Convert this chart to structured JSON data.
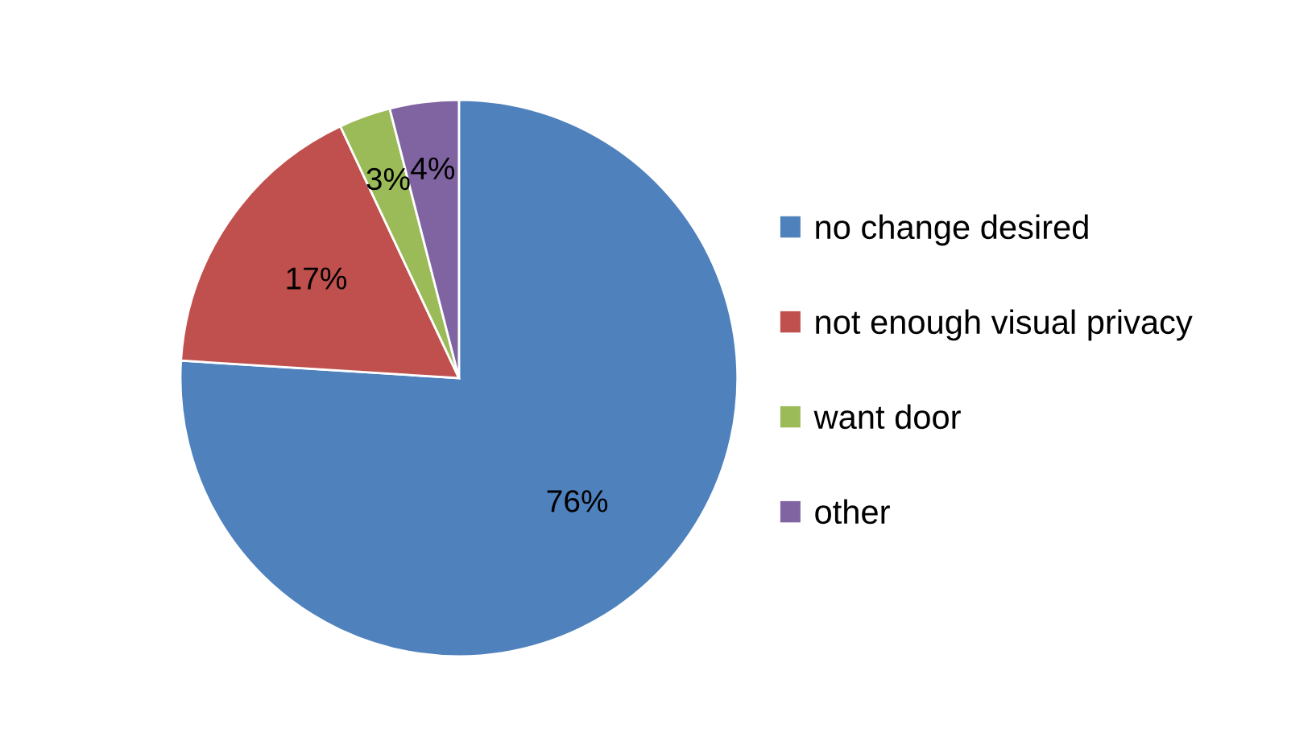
{
  "chart_data": {
    "type": "pie",
    "categories": [
      "no change desired",
      "not enough visual privacy",
      "want door",
      "other"
    ],
    "values": [
      76,
      17,
      3,
      4
    ],
    "colors": [
      "#4f81bd",
      "#c0504d",
      "#9bbb59",
      "#8064a2"
    ],
    "value_labels": [
      "76%",
      "17%",
      "3%",
      "4%"
    ],
    "legend": "right"
  }
}
